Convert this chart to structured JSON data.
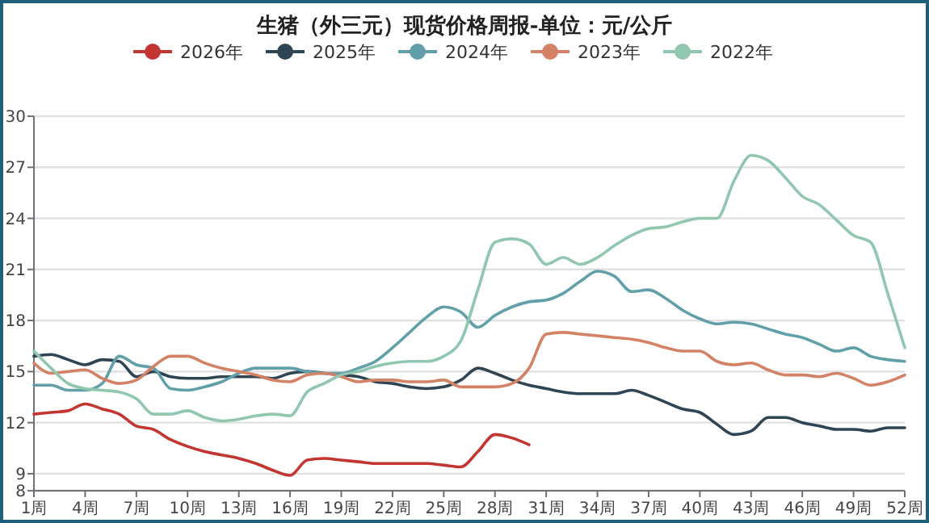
{
  "chart_data": {
    "type": "line",
    "title": "生猪（外三元）现货价格周报-单位：元/公斤",
    "categories": [
      "1周",
      null,
      null,
      "4周",
      null,
      null,
      "7周",
      null,
      null,
      "10周",
      null,
      null,
      "13周",
      null,
      null,
      "16周",
      null,
      null,
      "19周",
      null,
      null,
      "22周",
      null,
      null,
      "25周",
      null,
      null,
      "28周",
      null,
      null,
      "31周",
      null,
      null,
      "34周",
      null,
      null,
      "37周",
      null,
      null,
      "40周",
      null,
      null,
      "43周",
      null,
      null,
      "46周",
      null,
      null,
      "49周",
      null,
      null,
      "52周"
    ],
    "series": [
      {
        "name": "2026年",
        "color": "#c23531",
        "values": [
          12.5,
          12.6,
          12.7,
          13.1,
          12.8,
          12.5,
          11.8,
          11.6,
          11.0,
          10.6,
          10.3,
          10.1,
          9.9,
          9.6,
          9.2,
          8.9,
          9.8,
          9.9,
          9.8,
          9.7,
          9.6,
          9.6,
          9.6,
          9.6,
          9.5,
          9.4,
          10.3,
          11.3,
          11.1,
          10.7,
          null,
          null,
          null,
          null,
          null,
          null,
          null,
          null,
          null,
          null,
          null,
          null,
          null,
          null,
          null,
          null,
          null,
          null,
          null,
          null,
          null,
          null
        ]
      },
      {
        "name": "2025年",
        "color": "#2f4554",
        "values": [
          15.9,
          16.0,
          15.7,
          15.4,
          15.7,
          15.6,
          14.7,
          15.0,
          14.7,
          14.6,
          14.6,
          14.7,
          14.7,
          14.7,
          14.6,
          14.9,
          15.0,
          14.9,
          14.8,
          14.7,
          14.4,
          14.3,
          14.1,
          14.0,
          14.1,
          14.5,
          15.2,
          14.9,
          14.5,
          14.2,
          14.0,
          13.8,
          13.7,
          13.7,
          13.7,
          13.9,
          13.6,
          13.2,
          12.8,
          12.6,
          11.9,
          11.3,
          11.5,
          12.3,
          12.3,
          12.0,
          11.8,
          11.6,
          11.6,
          11.5,
          11.7,
          11.7
        ]
      },
      {
        "name": "2024年",
        "color": "#61a0a8",
        "values": [
          14.2,
          14.2,
          13.9,
          13.9,
          14.3,
          15.9,
          15.4,
          15.2,
          14.0,
          13.9,
          14.1,
          14.4,
          14.9,
          15.2,
          15.2,
          15.2,
          15.0,
          14.9,
          14.9,
          15.2,
          15.6,
          16.4,
          17.3,
          18.2,
          18.8,
          18.5,
          17.6,
          18.3,
          18.8,
          19.1,
          19.2,
          19.6,
          20.3,
          20.9,
          20.6,
          19.7,
          19.8,
          19.3,
          18.6,
          18.1,
          17.8,
          17.9,
          17.8,
          17.5,
          17.2,
          17.0,
          16.6,
          16.2,
          16.4,
          15.9,
          15.7,
          15.6
        ]
      },
      {
        "name": "2023年",
        "color": "#d48265",
        "values": [
          15.5,
          14.9,
          15.0,
          15.1,
          14.6,
          14.3,
          14.5,
          15.3,
          15.9,
          15.9,
          15.5,
          15.2,
          15.0,
          14.8,
          14.5,
          14.4,
          14.8,
          14.9,
          14.7,
          14.4,
          14.5,
          14.5,
          14.4,
          14.4,
          14.5,
          14.1,
          14.1,
          14.1,
          14.3,
          15.2,
          17.2,
          17.3,
          17.2,
          17.1,
          17.0,
          16.9,
          16.7,
          16.4,
          16.2,
          16.2,
          15.6,
          15.4,
          15.5,
          15.1,
          14.8,
          14.8,
          14.7,
          14.9,
          14.6,
          14.2,
          14.4,
          14.8
        ]
      },
      {
        "name": "2022年",
        "color": "#91c7ae",
        "values": [
          16.2,
          15.2,
          14.3,
          14.0,
          13.9,
          13.8,
          13.4,
          12.5,
          12.5,
          12.7,
          12.3,
          12.1,
          12.2,
          12.4,
          12.5,
          12.4,
          13.8,
          14.3,
          14.8,
          15.0,
          15.3,
          15.5,
          15.6,
          15.6,
          15.9,
          16.8,
          19.8,
          22.6,
          22.8,
          22.5,
          21.3,
          21.7,
          21.3,
          21.7,
          22.4,
          23.0,
          23.4,
          23.5,
          23.8,
          24.0,
          24.0,
          26.2,
          27.7,
          27.4,
          26.4,
          25.3,
          24.8,
          23.9,
          23.0,
          22.6,
          19.6,
          16.4
        ]
      }
    ],
    "ylim": [
      8,
      30
    ],
    "yticks": [
      8,
      9,
      12,
      15,
      18,
      21,
      24,
      27,
      30
    ],
    "grid": "y",
    "legend": "top",
    "line_style": "solid"
  }
}
